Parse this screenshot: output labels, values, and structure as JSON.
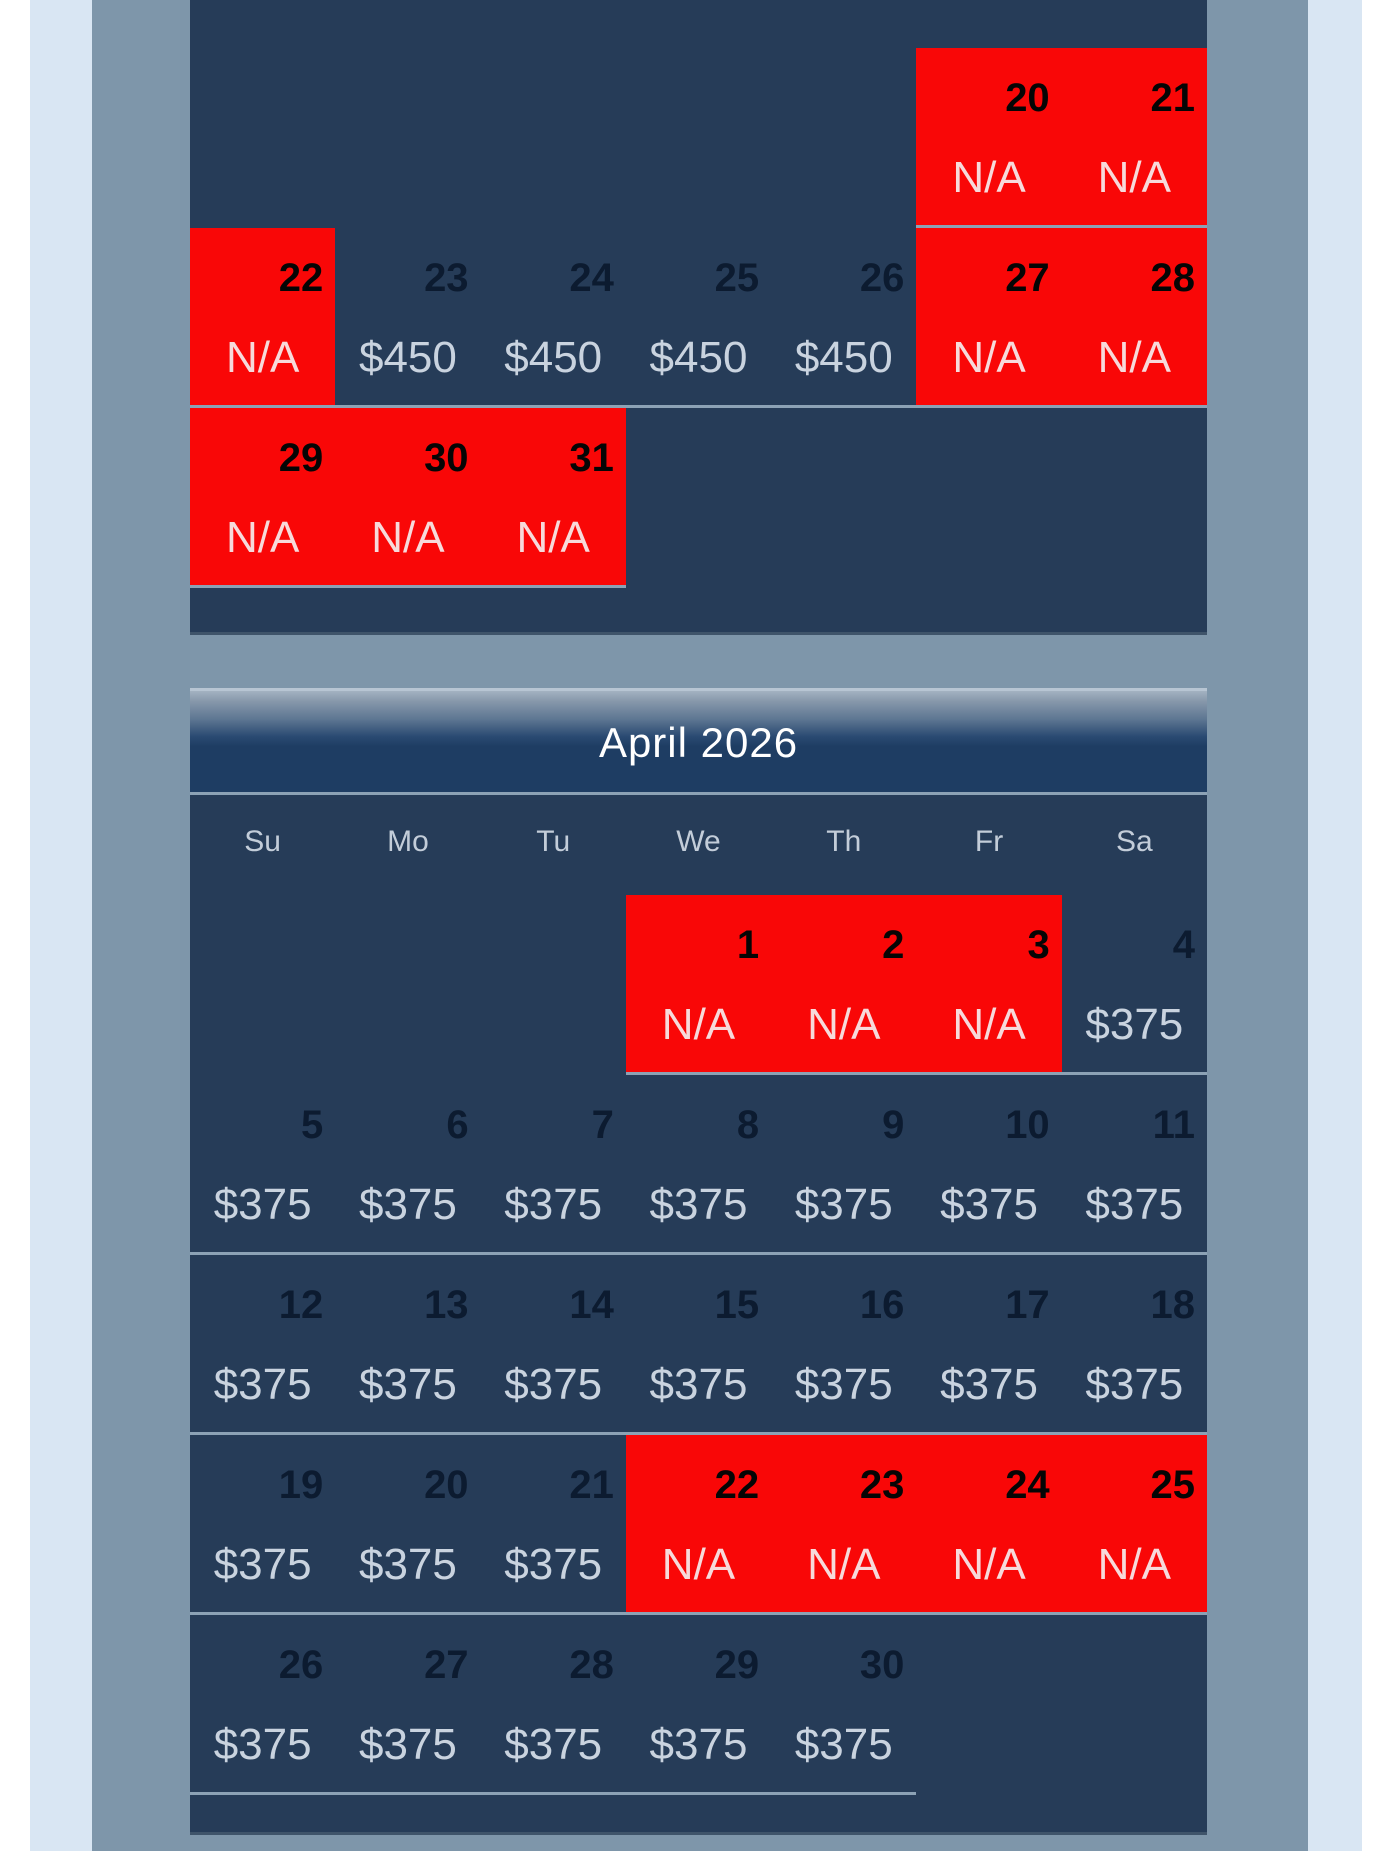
{
  "colors": {
    "bg": "#7e96aa",
    "edgeLight": "#d9e6f3",
    "white": "#ffffff",
    "navy": "#263c58",
    "headerDeep": "#1e3d63",
    "red": "#f90707",
    "divider": "#8ca2b5",
    "calEdge": "#3f546a",
    "dayColor": "#0c1b30",
    "dayOnRed": "#050505",
    "priceColor": "#c9d3df",
    "naColor": "#f7dadb",
    "weekdayColor": "#c3cdd9",
    "titleColor": "#ffffff"
  },
  "calendars": [
    {
      "id": "march",
      "title": "",
      "rows": [
        [
          null,
          null,
          null,
          null,
          null,
          {
            "day": "20",
            "price": "N/A",
            "status": "unavailable"
          },
          {
            "day": "21",
            "price": "N/A",
            "status": "unavailable"
          }
        ],
        [
          {
            "day": "22",
            "price": "N/A",
            "status": "unavailable"
          },
          {
            "day": "23",
            "price": "$450",
            "status": "available"
          },
          {
            "day": "24",
            "price": "$450",
            "status": "available"
          },
          {
            "day": "25",
            "price": "$450",
            "status": "available"
          },
          {
            "day": "26",
            "price": "$450",
            "status": "available"
          },
          {
            "day": "27",
            "price": "N/A",
            "status": "unavailable"
          },
          {
            "day": "28",
            "price": "N/A",
            "status": "unavailable"
          }
        ],
        [
          {
            "day": "29",
            "price": "N/A",
            "status": "unavailable"
          },
          {
            "day": "30",
            "price": "N/A",
            "status": "unavailable"
          },
          {
            "day": "31",
            "price": "N/A",
            "status": "unavailable"
          },
          null,
          null,
          null,
          null
        ]
      ]
    },
    {
      "id": "april",
      "title": "April 2026",
      "weekdays": [
        "Su",
        "Mo",
        "Tu",
        "We",
        "Th",
        "Fr",
        "Sa"
      ],
      "rows": [
        [
          null,
          null,
          null,
          {
            "day": "1",
            "price": "N/A",
            "status": "unavailable"
          },
          {
            "day": "2",
            "price": "N/A",
            "status": "unavailable"
          },
          {
            "day": "3",
            "price": "N/A",
            "status": "unavailable"
          },
          {
            "day": "4",
            "price": "$375",
            "status": "available"
          }
        ],
        [
          {
            "day": "5",
            "price": "$375",
            "status": "available"
          },
          {
            "day": "6",
            "price": "$375",
            "status": "available"
          },
          {
            "day": "7",
            "price": "$375",
            "status": "available"
          },
          {
            "day": "8",
            "price": "$375",
            "status": "available"
          },
          {
            "day": "9",
            "price": "$375",
            "status": "available"
          },
          {
            "day": "10",
            "price": "$375",
            "status": "available"
          },
          {
            "day": "11",
            "price": "$375",
            "status": "available"
          }
        ],
        [
          {
            "day": "12",
            "price": "$375",
            "status": "available"
          },
          {
            "day": "13",
            "price": "$375",
            "status": "available"
          },
          {
            "day": "14",
            "price": "$375",
            "status": "available"
          },
          {
            "day": "15",
            "price": "$375",
            "status": "available"
          },
          {
            "day": "16",
            "price": "$375",
            "status": "available"
          },
          {
            "day": "17",
            "price": "$375",
            "status": "available"
          },
          {
            "day": "18",
            "price": "$375",
            "status": "available"
          }
        ],
        [
          {
            "day": "19",
            "price": "$375",
            "status": "available"
          },
          {
            "day": "20",
            "price": "$375",
            "status": "available"
          },
          {
            "day": "21",
            "price": "$375",
            "status": "available"
          },
          {
            "day": "22",
            "price": "N/A",
            "status": "unavailable"
          },
          {
            "day": "23",
            "price": "N/A",
            "status": "unavailable"
          },
          {
            "day": "24",
            "price": "N/A",
            "status": "unavailable"
          },
          {
            "day": "25",
            "price": "N/A",
            "status": "unavailable"
          }
        ],
        [
          {
            "day": "26",
            "price": "$375",
            "status": "available"
          },
          {
            "day": "27",
            "price": "$375",
            "status": "available"
          },
          {
            "day": "28",
            "price": "$375",
            "status": "available"
          },
          {
            "day": "29",
            "price": "$375",
            "status": "available"
          },
          {
            "day": "30",
            "price": "$375",
            "status": "available"
          },
          null,
          null
        ]
      ]
    }
  ]
}
